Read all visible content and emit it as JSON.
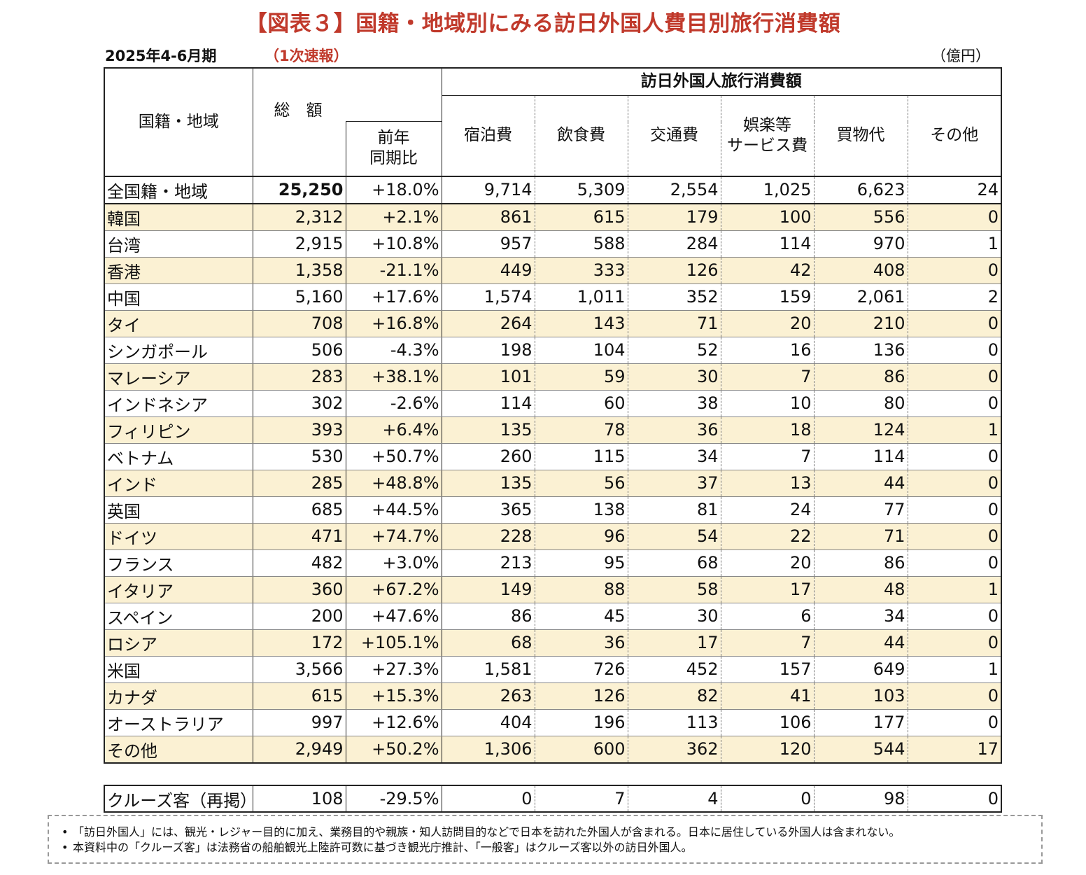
{
  "title": "【図表３】国籍・地域別にみる訪日外国人費目別旅行消費額",
  "period": "2025年4-6月期",
  "preliminary": "（1次速報）",
  "unit": "（億円）",
  "header": {
    "country": "国籍・地域",
    "total": "総　額",
    "group": "訪日外国人旅行消費額",
    "yoy_line1": "前年",
    "yoy_line2": "同期比",
    "accommodation": "宿泊費",
    "food": "飲食費",
    "transport": "交通費",
    "entertainment_line1": "娯楽等",
    "entertainment_line2": "サービス費",
    "shopping": "買物代",
    "other": "その他"
  },
  "rows": [
    {
      "name": "全国籍・地域",
      "total": "25,250",
      "yoy": "+18.0%",
      "acc": "9,714",
      "food": "5,309",
      "trans": "2,554",
      "ent": "1,025",
      "shop": "6,623",
      "other": "24"
    },
    {
      "name": "韓国",
      "total": "2,312",
      "yoy": "+2.1%",
      "acc": "861",
      "food": "615",
      "trans": "179",
      "ent": "100",
      "shop": "556",
      "other": "0"
    },
    {
      "name": "台湾",
      "total": "2,915",
      "yoy": "+10.8%",
      "acc": "957",
      "food": "588",
      "trans": "284",
      "ent": "114",
      "shop": "970",
      "other": "1"
    },
    {
      "name": "香港",
      "total": "1,358",
      "yoy": "-21.1%",
      "acc": "449",
      "food": "333",
      "trans": "126",
      "ent": "42",
      "shop": "408",
      "other": "0"
    },
    {
      "name": "中国",
      "total": "5,160",
      "yoy": "+17.6%",
      "acc": "1,574",
      "food": "1,011",
      "trans": "352",
      "ent": "159",
      "shop": "2,061",
      "other": "2"
    },
    {
      "name": "タイ",
      "total": "708",
      "yoy": "+16.8%",
      "acc": "264",
      "food": "143",
      "trans": "71",
      "ent": "20",
      "shop": "210",
      "other": "0"
    },
    {
      "name": "シンガポール",
      "total": "506",
      "yoy": "-4.3%",
      "acc": "198",
      "food": "104",
      "trans": "52",
      "ent": "16",
      "shop": "136",
      "other": "0"
    },
    {
      "name": "マレーシア",
      "total": "283",
      "yoy": "+38.1%",
      "acc": "101",
      "food": "59",
      "trans": "30",
      "ent": "7",
      "shop": "86",
      "other": "0"
    },
    {
      "name": "インドネシア",
      "total": "302",
      "yoy": "-2.6%",
      "acc": "114",
      "food": "60",
      "trans": "38",
      "ent": "10",
      "shop": "80",
      "other": "0"
    },
    {
      "name": "フィリピン",
      "total": "393",
      "yoy": "+6.4%",
      "acc": "135",
      "food": "78",
      "trans": "36",
      "ent": "18",
      "shop": "124",
      "other": "1"
    },
    {
      "name": "ベトナム",
      "total": "530",
      "yoy": "+50.7%",
      "acc": "260",
      "food": "115",
      "trans": "34",
      "ent": "7",
      "shop": "114",
      "other": "0"
    },
    {
      "name": "インド",
      "total": "285",
      "yoy": "+48.8%",
      "acc": "135",
      "food": "56",
      "trans": "37",
      "ent": "13",
      "shop": "44",
      "other": "0"
    },
    {
      "name": "英国",
      "total": "685",
      "yoy": "+44.5%",
      "acc": "365",
      "food": "138",
      "trans": "81",
      "ent": "24",
      "shop": "77",
      "other": "0"
    },
    {
      "name": "ドイツ",
      "total": "471",
      "yoy": "+74.7%",
      "acc": "228",
      "food": "96",
      "trans": "54",
      "ent": "22",
      "shop": "71",
      "other": "0"
    },
    {
      "name": "フランス",
      "total": "482",
      "yoy": "+3.0%",
      "acc": "213",
      "food": "95",
      "trans": "68",
      "ent": "20",
      "shop": "86",
      "other": "0"
    },
    {
      "name": "イタリア",
      "total": "360",
      "yoy": "+67.2%",
      "acc": "149",
      "food": "88",
      "trans": "58",
      "ent": "17",
      "shop": "48",
      "other": "1"
    },
    {
      "name": "スペイン",
      "total": "200",
      "yoy": "+47.6%",
      "acc": "86",
      "food": "45",
      "trans": "30",
      "ent": "6",
      "shop": "34",
      "other": "0"
    },
    {
      "name": "ロシア",
      "total": "172",
      "yoy": "+105.1%",
      "acc": "68",
      "food": "36",
      "trans": "17",
      "ent": "7",
      "shop": "44",
      "other": "0"
    },
    {
      "name": "米国",
      "total": "3,566",
      "yoy": "+27.3%",
      "acc": "1,581",
      "food": "726",
      "trans": "452",
      "ent": "157",
      "shop": "649",
      "other": "1"
    },
    {
      "name": "カナダ",
      "total": "615",
      "yoy": "+15.3%",
      "acc": "263",
      "food": "126",
      "trans": "82",
      "ent": "41",
      "shop": "103",
      "other": "0"
    },
    {
      "name": "オーストラリア",
      "total": "997",
      "yoy": "+12.6%",
      "acc": "404",
      "food": "196",
      "trans": "113",
      "ent": "106",
      "shop": "177",
      "other": "0"
    },
    {
      "name": "その他",
      "total": "2,949",
      "yoy": "+50.2%",
      "acc": "1,306",
      "food": "600",
      "trans": "362",
      "ent": "120",
      "shop": "544",
      "other": "17"
    }
  ],
  "cruise": {
    "name": "クルーズ客（再掲）",
    "total": "108",
    "yoy": "-29.5%",
    "acc": "0",
    "food": "7",
    "trans": "4",
    "ent": "0",
    "shop": "98",
    "other": "0"
  },
  "notes": [
    "「訪日外国人」には、観光・レジャー目的に加え、業務目的や親族・知人訪問目的などで日本を訪れた外国人が含まれる。日本に居住している外国人は含まれない。",
    "本資料中の「クルーズ客」は法務省の船舶観光上陸許可数に基づき観光庁推計、「一般客」はクルーズ客以外の訪日外国人。"
  ],
  "note_bullet": "•"
}
